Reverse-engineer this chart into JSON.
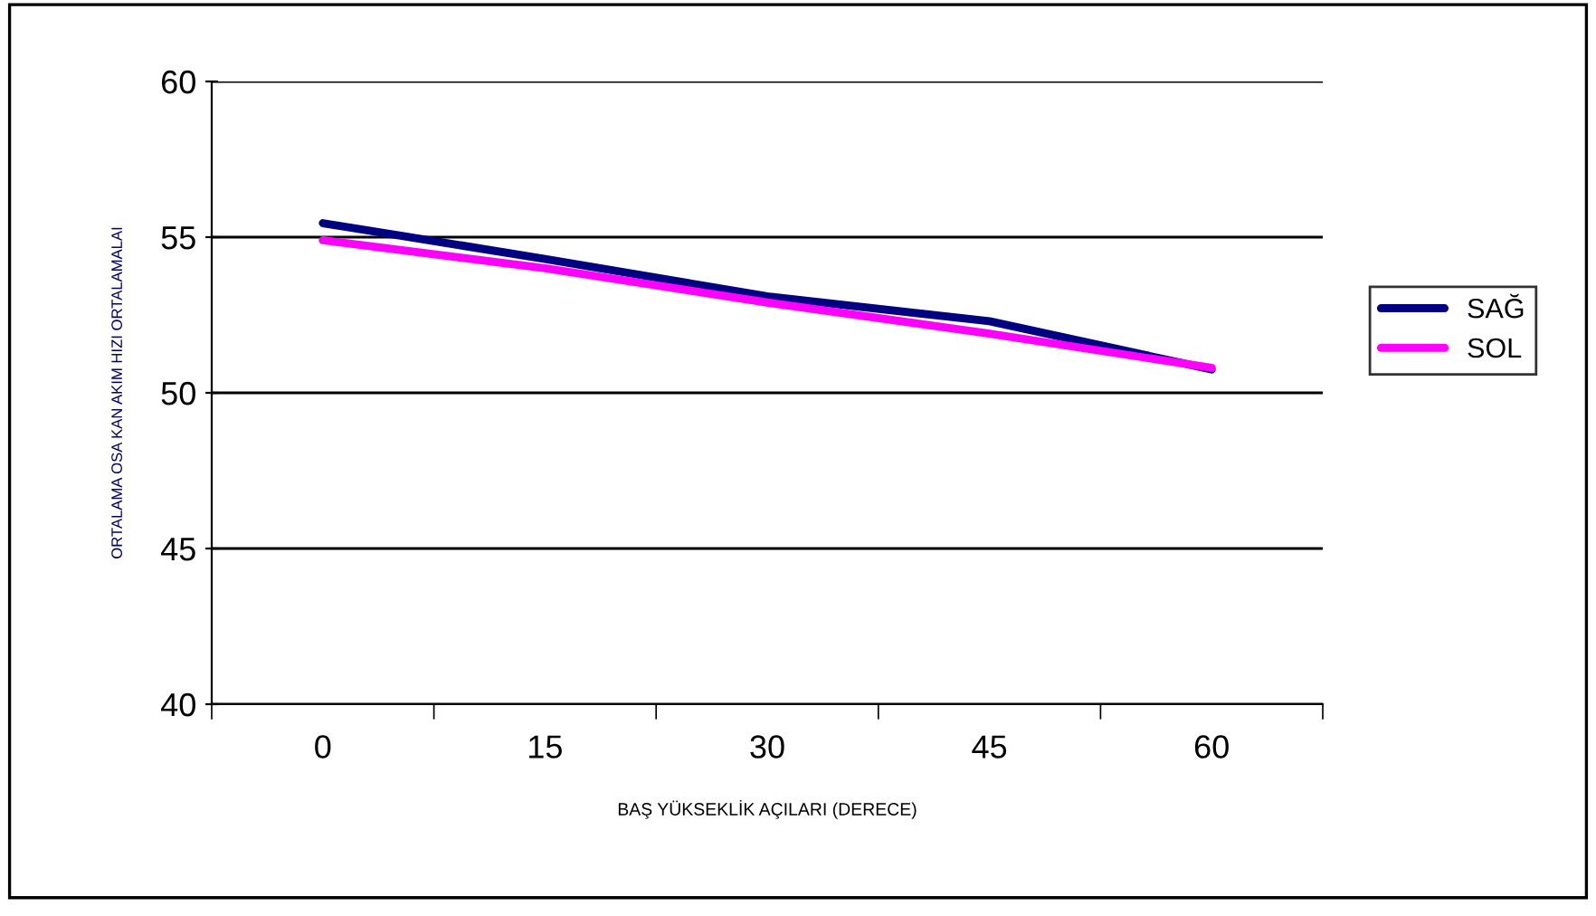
{
  "chart_data": {
    "type": "line",
    "xlabel": "BAŞ YÜKSEKLİK AÇILARI (DERECE)",
    "ylabel": "ORTALAMA OSA KAN AKIM HIZI ORTALAMALAI",
    "categories": [
      "0",
      "15",
      "30",
      "45",
      "60"
    ],
    "series": [
      {
        "name": "SAĞ",
        "color": "#000080",
        "values": [
          55.45,
          54.3,
          53.1,
          52.3,
          50.75
        ]
      },
      {
        "name": "SOL",
        "color": "#ff00ff",
        "values": [
          54.9,
          54.0,
          52.9,
          51.9,
          50.8
        ]
      }
    ],
    "ylim": [
      40,
      60
    ],
    "yticks": [
      40,
      45,
      50,
      55,
      60
    ],
    "grid": "y",
    "legend": "right",
    "marker": "none",
    "line_style": "solid"
  }
}
